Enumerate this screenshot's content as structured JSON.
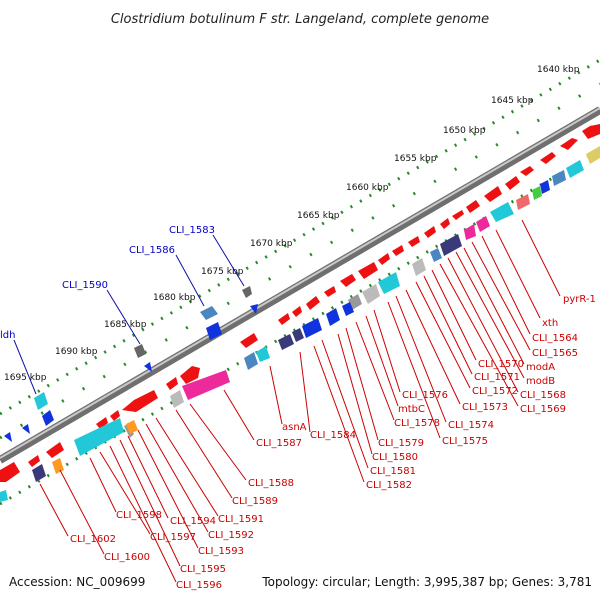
{
  "title": "Clostridium botulinum F str. Langeland, complete genome",
  "footer": {
    "accession": "Accession: NC_009699",
    "summary": "Topology: circular; Length: 3,995,387 bp; Genes: 3,781"
  },
  "colors": {
    "backbone": "#8a8a8a",
    "tick": "#2a8a2a",
    "forward_label": "#0000c8",
    "reverse_label": "#cc0000",
    "gene_red": "#ee1111",
    "gene_blue": "#1133dd",
    "gene_cyan": "#22c8d8",
    "gene_magenta": "#ee2a9a",
    "gene_navy": "#3a3a7a",
    "gene_gray": "#999999",
    "gene_orange": "#ff9922",
    "gene_green": "#44cc44",
    "gene_steel": "#4a86c0",
    "gene_teal": "#2aa0b8"
  },
  "kbp_labels": [
    "1640 kbp",
    "1645 kbp",
    "1650 kbp",
    "1655 kbp",
    "1660 kbp",
    "1665 kbp",
    "1670 kbp",
    "1675 kbp",
    "1680 kbp",
    "1685 kbp",
    "1690 kbp",
    "1695 kbp"
  ],
  "forward_labels": [
    "ldh",
    "CLI_1590",
    "CLI_1586",
    "CLI_1583"
  ],
  "reverse_labels": [
    "pyrR-1",
    "xth",
    "CLI_1564",
    "CLI_1565",
    "modA",
    "modB",
    "CLI_1568",
    "CLI_1569",
    "CLI_1570",
    "CLI_1571",
    "CLI_1572",
    "CLI_1573",
    "CLI_1574",
    "CLI_1575",
    "CLI_1576",
    "mtbC",
    "CLI_1578",
    "CLI_1579",
    "CLI_1580",
    "CLI_1581",
    "CLI_1582",
    "CLI_1584",
    "asnA",
    "CLI_1587",
    "CLI_1588",
    "CLI_1589",
    "CLI_1591",
    "CLI_1592",
    "CLI_1593",
    "CLI_1594",
    "CLI_1595",
    "CLI_1596",
    "CLI_1597",
    "CLI_1598",
    "CLI_1600",
    "CLI_1602"
  ]
}
